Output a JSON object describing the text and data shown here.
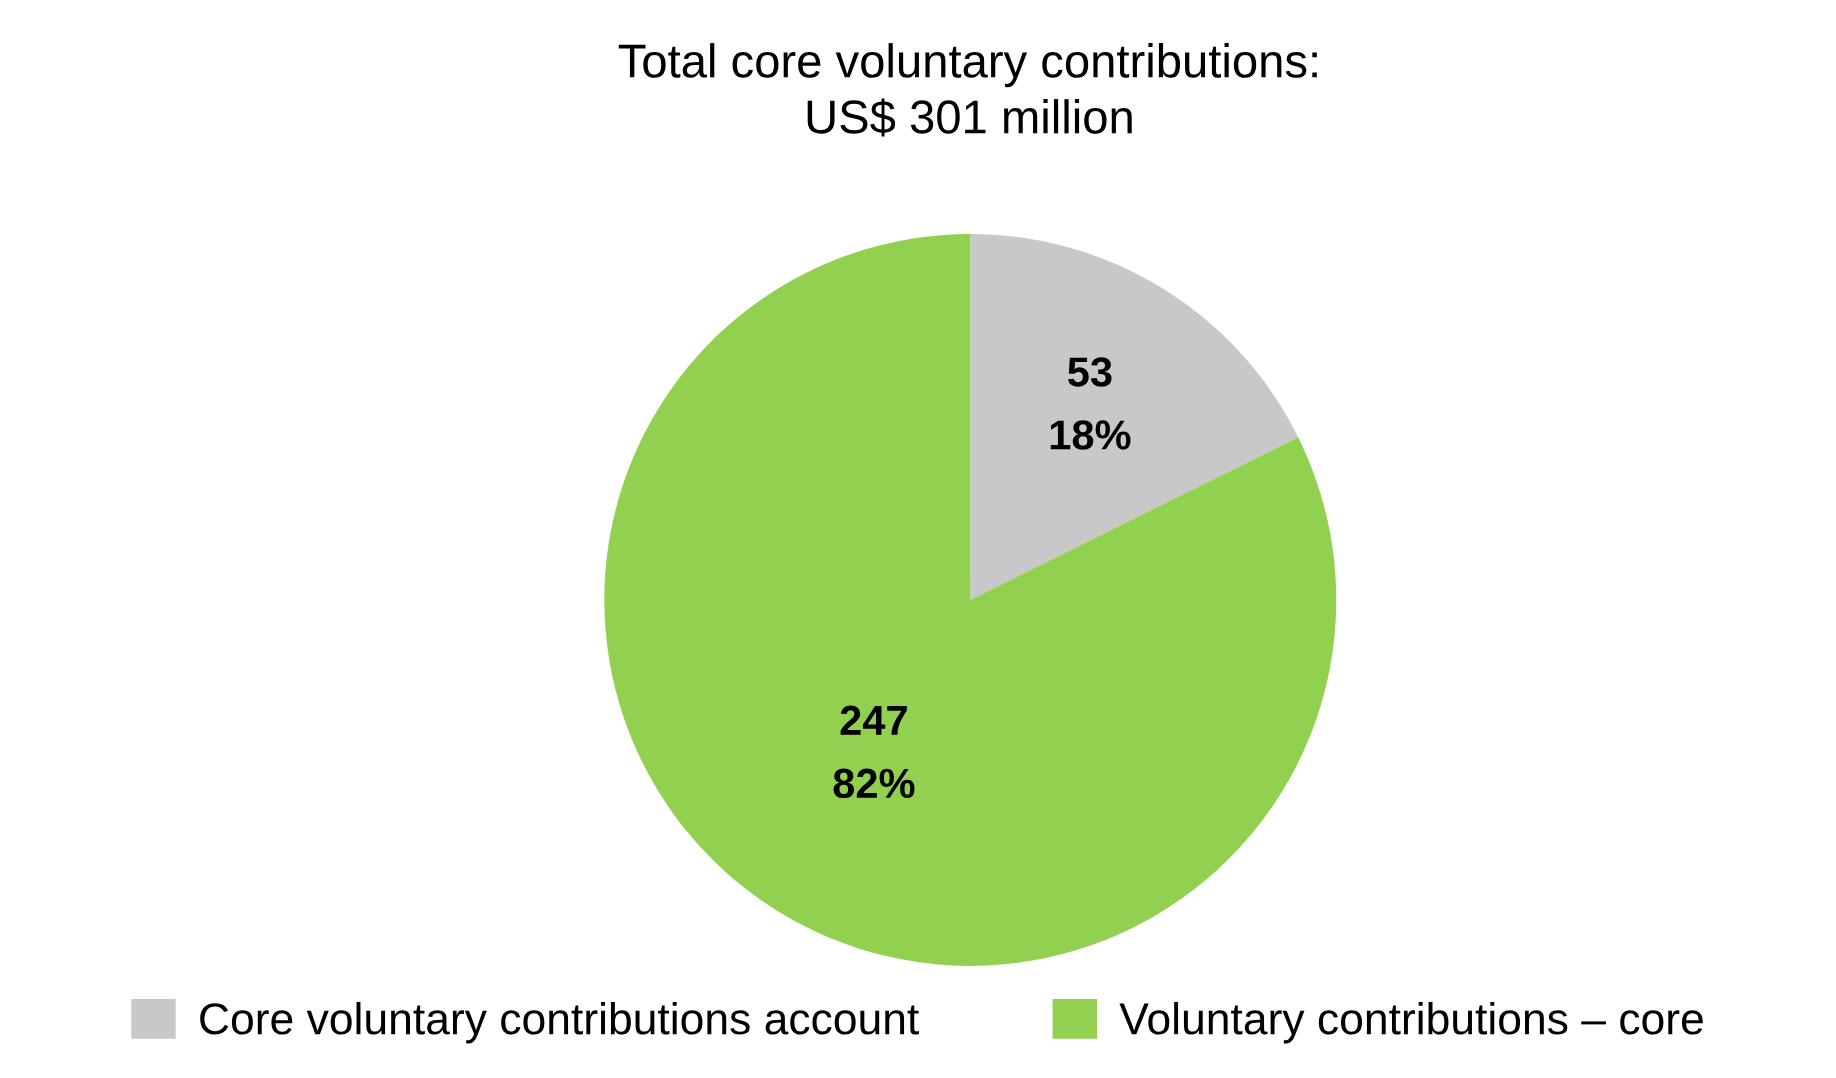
{
  "chart_data": {
    "type": "pie",
    "title": "Total core voluntary contributions:\nUS$ 301 million",
    "categories": [
      "Core voluntary contributions account",
      "Voluntary contributions – core"
    ],
    "values": [
      53,
      247
    ],
    "colors": [
      "#c8c8c8",
      "#92d050"
    ],
    "value_labels": [
      "53\n18%",
      "247\n82%"
    ],
    "legend": "bottom"
  }
}
